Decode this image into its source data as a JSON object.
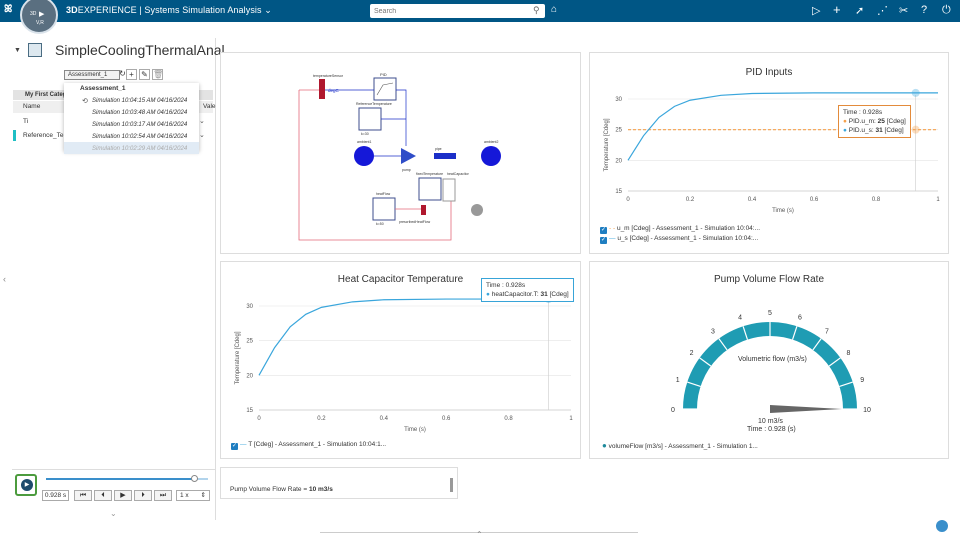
{
  "app": {
    "brand_bold": "3D",
    "brand_rest": "EXPERIENCE",
    "separator": " | ",
    "app_name": "Systems Simulation Analysis",
    "compass_top": "3D",
    "compass_bottom": "V,R"
  },
  "search": {
    "placeholder": "Search"
  },
  "model": {
    "title": "SimpleCoolingThermalAnal..."
  },
  "assessment": {
    "selected": "Assessment_1"
  },
  "dropdown": {
    "header": "Assessment_1",
    "items": [
      "Simulation 10:04:15 AM 04/16/2024",
      "Simulation 10:03:48 AM 04/16/2024",
      "Simulation 10:03:17 AM 04/16/2024",
      "Simulation 10:02:54 AM 04/16/2024",
      "Simulation 10:02:29 AM 04/16/2024"
    ]
  },
  "tree": {
    "header": "My First Categ",
    "col_name": "Name",
    "col_value": "Vale",
    "rows": [
      "Ti",
      "Reference_Te"
    ]
  },
  "player": {
    "time": "0.928 s",
    "speed": "1 x",
    "progress": 0.928
  },
  "pid_chart": {
    "title": "PID Inputs",
    "ylabel": "Temperature [Cdeg]",
    "xlabel": "Time (s)",
    "tooltip_time": "Time : 0.928s",
    "tooltip_um_label": "PID.u_m: ",
    "tooltip_um_val": "25",
    "tooltip_um_unit": " [Cdeg]",
    "tooltip_us_label": "PID.u_s: ",
    "tooltip_us_val": "31",
    "tooltip_us_unit": " [Cdeg]",
    "legend1": "u_m [Cdeg] - Assessment_1 - Simulation 10:04:...",
    "legend2": "u_s [Cdeg] - Assessment_1 - Simulation 10:04:..."
  },
  "heat_chart": {
    "title": "Heat Capacitor Temperature",
    "ylabel": "Temperature [Cdeg]",
    "xlabel": "Time (s)",
    "tooltip_time": "Time : 0.928s",
    "tooltip_label": "heatCapacitor.T: ",
    "tooltip_val": "31",
    "tooltip_unit": " [Cdeg]",
    "legend": "T [Cdeg] - Assessment_1 - Simulation 10:04:1..."
  },
  "gauge": {
    "title": "Pump Volume Flow Rate",
    "center_label": "Volumetric flow (m3/s)",
    "value_text": "10 m3/s",
    "time_text": "Time : 0.928 (s)",
    "legend": "volumeFlow [m3/s] - Assessment_1 - Simulation 1...",
    "ticks": [
      "0",
      "1",
      "2",
      "3",
      "4",
      "5",
      "6",
      "7",
      "8",
      "9",
      "10"
    ],
    "value": 10,
    "min": 0,
    "max": 10
  },
  "note": {
    "label": "Pump Volume Flow Rate = ",
    "value": "10 m3/s"
  },
  "diagram": {
    "label_degc": "degC",
    "label_pid": "PID",
    "label_heat": "heatCapacitor"
  },
  "colors": {
    "topbar": "#005685",
    "accent": "#1f9cb3",
    "orange": "#f5a04a",
    "line": "#3aa6dc"
  },
  "chart_data": [
    {
      "type": "line",
      "title": "PID Inputs",
      "xlabel": "Time (s)",
      "ylabel": "Temperature [Cdeg]",
      "xlim": [
        0,
        1
      ],
      "ylim": [
        15,
        30
      ],
      "xticks": [
        "0",
        "0.2",
        "0.4",
        "0.6",
        "0.8",
        "1"
      ],
      "yticks": [
        "15",
        "20",
        "25",
        "30"
      ],
      "series": [
        {
          "name": "u_m [Cdeg]",
          "x": [
            0,
            1
          ],
          "y": [
            25,
            25
          ]
        },
        {
          "name": "u_s [Cdeg]",
          "x": [
            0,
            0.05,
            0.1,
            0.15,
            0.2,
            0.3,
            0.4,
            0.6,
            0.8,
            1
          ],
          "y": [
            20,
            24,
            27,
            28.8,
            29.8,
            30.6,
            30.9,
            31,
            31,
            31
          ]
        }
      ]
    },
    {
      "type": "line",
      "title": "Heat Capacitor Temperature",
      "xlabel": "Time (s)",
      "ylabel": "Temperature [Cdeg]",
      "xlim": [
        0,
        1
      ],
      "ylim": [
        15,
        30
      ],
      "xticks": [
        "0",
        "0.2",
        "0.4",
        "0.6",
        "0.8",
        "1"
      ],
      "yticks": [
        "15",
        "20",
        "25",
        "30"
      ],
      "series": [
        {
          "name": "T [Cdeg]",
          "x": [
            0,
            0.05,
            0.1,
            0.15,
            0.2,
            0.3,
            0.4,
            0.6,
            0.8,
            1
          ],
          "y": [
            20,
            24,
            27,
            28.8,
            29.8,
            30.6,
            30.9,
            31,
            31,
            31
          ]
        }
      ]
    }
  ]
}
